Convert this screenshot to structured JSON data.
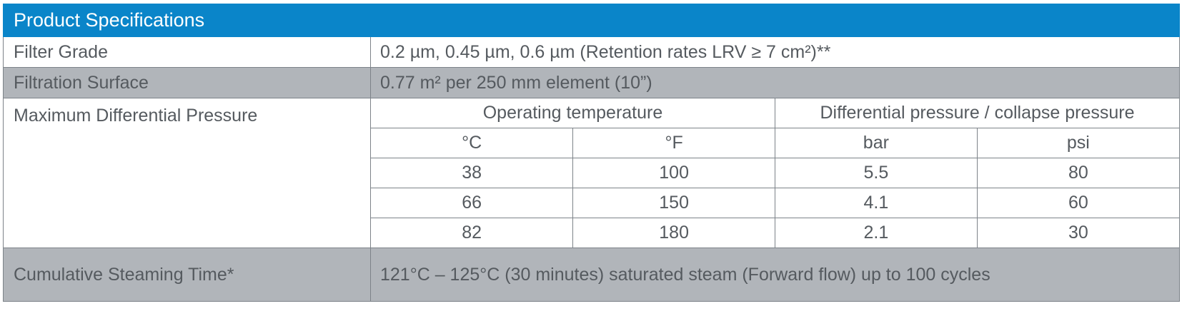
{
  "title": "Product Specifications",
  "rows": {
    "filter_grade": {
      "label": "Filter Grade",
      "value": "0.2 µm, 0.45 µm, 0.6 µm (Retention rates LRV ≥ 7 cm²)**"
    },
    "filtration_surface": {
      "label": "Filtration Surface",
      "value": "0.77 m² per 250 mm element (10”)"
    },
    "max_pressure": {
      "label": "Maximum Differential Pressure",
      "group_headers": [
        "Operating temperature",
        "Differential pressure / collapse pressure"
      ],
      "unit_headers": [
        "°C",
        "°F",
        "bar",
        "psi"
      ],
      "data": [
        [
          "38",
          "100",
          "5.5",
          "80"
        ],
        [
          "66",
          "150",
          "4.1",
          "60"
        ],
        [
          "82",
          "180",
          "2.1",
          "30"
        ]
      ]
    },
    "steaming": {
      "label": "Cumulative Steaming Time*",
      "value": "121°C – 125°C (30 minutes) saturated steam (Forward flow) up to 100 cycles"
    }
  },
  "colors": {
    "header_bg": "#0a85c9",
    "stripe_bg": "#b1b5ba",
    "border": "#7d8389",
    "text": "#555a5f"
  }
}
